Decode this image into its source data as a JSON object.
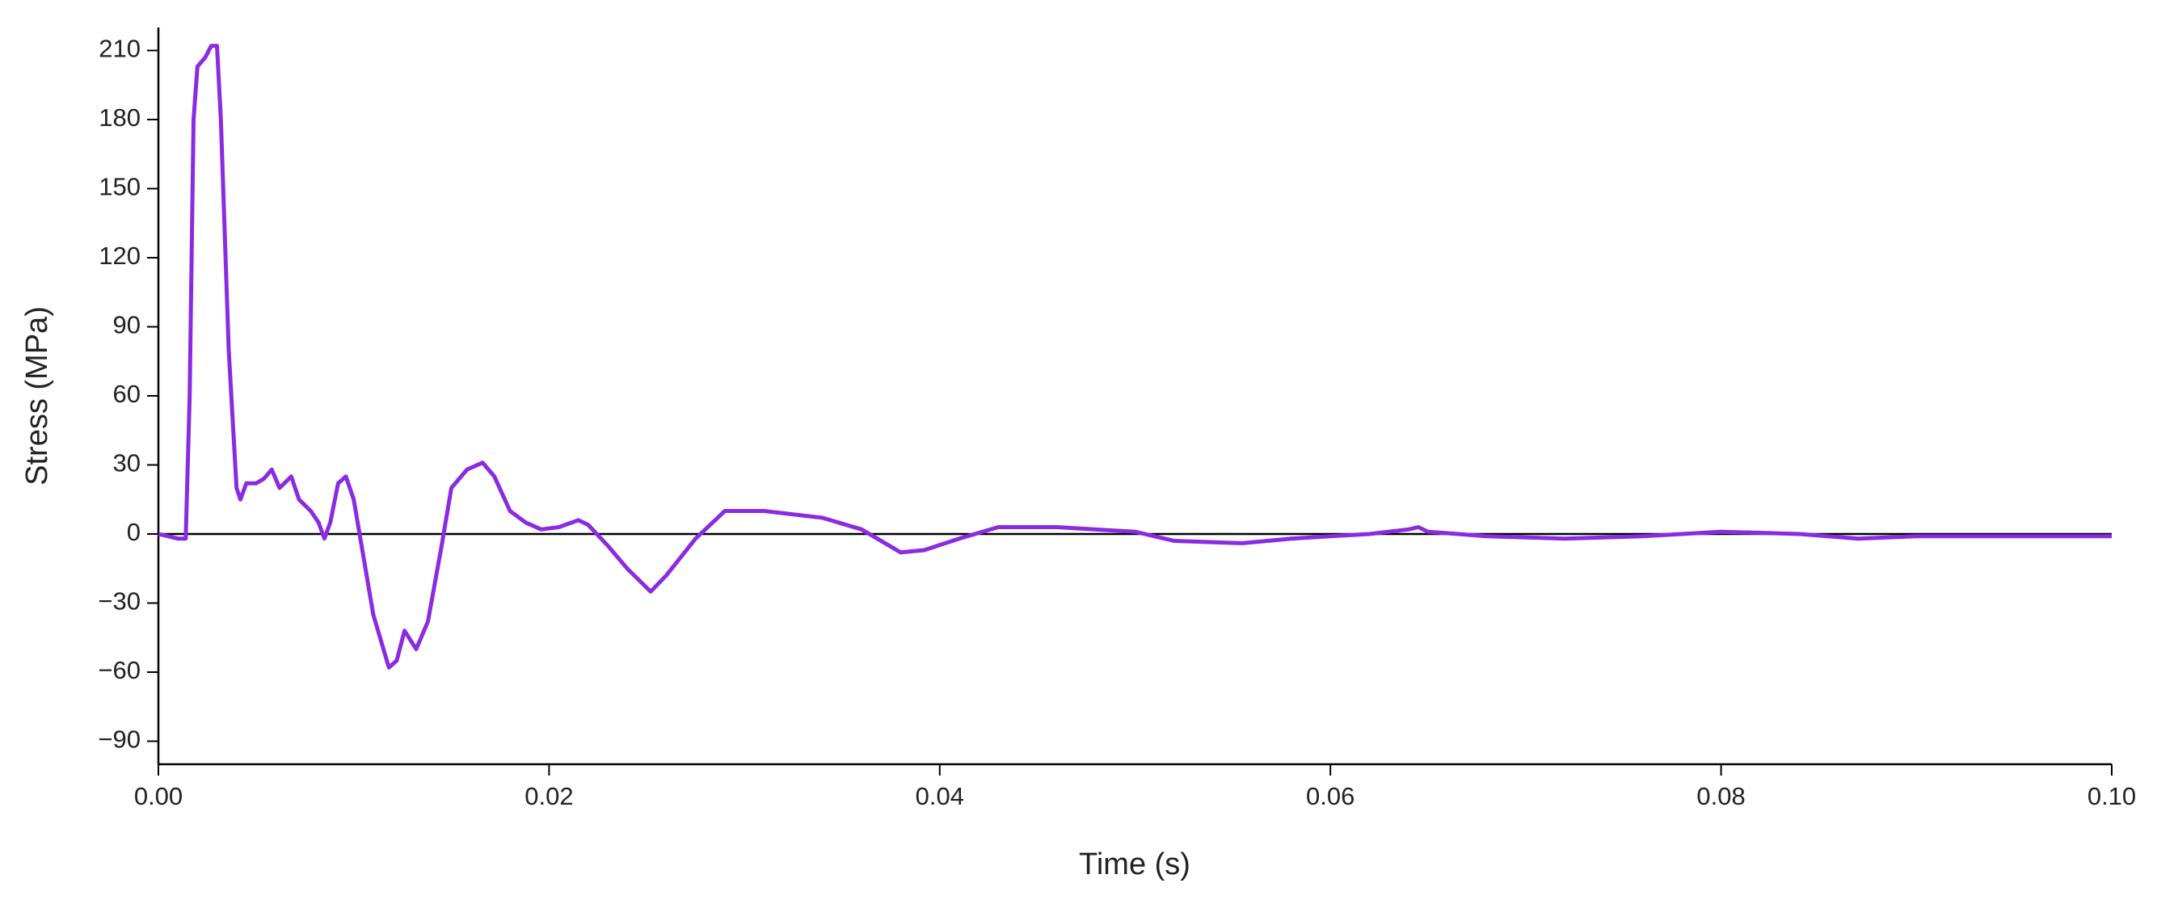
{
  "chart_data": {
    "type": "line",
    "x_label": "Time (s)",
    "y_label": "Stress (MPa)",
    "x": [
      0,
      0.001,
      0.0014,
      0.0016,
      0.0018,
      0.002,
      0.0024,
      0.0027,
      0.003,
      0.0032,
      0.0036,
      0.004,
      0.0042,
      0.0045,
      0.005,
      0.0054,
      0.0058,
      0.0062,
      0.0068,
      0.0072,
      0.0078,
      0.0082,
      0.0085,
      0.0088,
      0.0092,
      0.0096,
      0.01,
      0.0105,
      0.011,
      0.0118,
      0.0122,
      0.0126,
      0.0132,
      0.0138,
      0.0145,
      0.015,
      0.0158,
      0.0166,
      0.0172,
      0.018,
      0.0188,
      0.0196,
      0.0205,
      0.0215,
      0.022,
      0.023,
      0.024,
      0.0246,
      0.0252,
      0.026,
      0.0275,
      0.029,
      0.031,
      0.034,
      0.036,
      0.038,
      0.0392,
      0.041,
      0.043,
      0.046,
      0.05,
      0.052,
      0.0555,
      0.058,
      0.06,
      0.062,
      0.064,
      0.0645,
      0.065,
      0.068,
      0.072,
      0.076,
      0.08,
      0.084,
      0.087,
      0.09,
      0.095,
      0.1
    ],
    "series": [
      {
        "name": "Stress",
        "color": "#8a2be2",
        "values": [
          0,
          -2,
          -2,
          60,
          180,
          203,
          207,
          212,
          212,
          180,
          80,
          20,
          15,
          22,
          22,
          24,
          28,
          20,
          25,
          15,
          10,
          5,
          -2,
          5,
          22,
          25,
          15,
          -10,
          -35,
          -58,
          -55,
          -42,
          -50,
          -38,
          -5,
          20,
          28,
          31,
          25,
          10,
          5,
          2,
          3,
          6,
          4,
          -5,
          -15,
          -20,
          -25,
          -18,
          -2,
          10,
          10,
          7,
          2,
          -8,
          -7,
          -2,
          3,
          3,
          1,
          -3,
          -4,
          -2,
          -1,
          0,
          2,
          3,
          1,
          -1,
          -2,
          -1,
          1,
          0,
          -2,
          -1,
          -1,
          -1
        ]
      }
    ],
    "xlim": [
      0,
      0.1
    ],
    "xticks": [
      {
        "value": 0,
        "label": "0.00"
      },
      0.02,
      0.04,
      0.06,
      0.08,
      {
        "value": 0.1,
        "label": "0.10"
      }
    ],
    "ylim": [
      -100,
      220
    ],
    "yticks": [
      {
        "value": -90,
        "label": "−90"
      },
      {
        "value": -60,
        "label": "−60"
      },
      {
        "value": -30,
        "label": "−30"
      },
      0,
      30,
      60,
      90,
      120,
      150,
      180,
      210
    ],
    "reference_line": 0,
    "legend": false
  }
}
